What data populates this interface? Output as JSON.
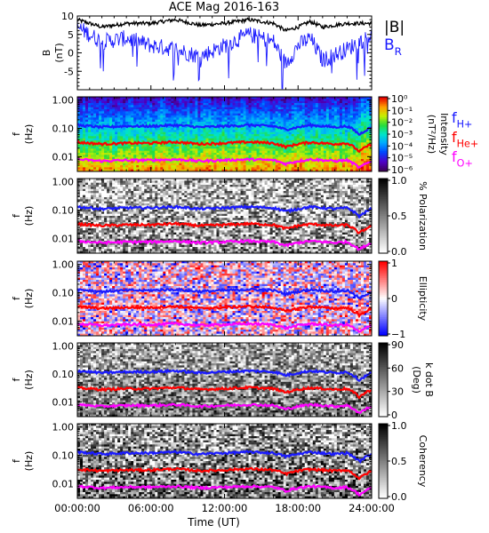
{
  "title": "ACE Mag 2016-163",
  "colors": {
    "B_total": "#000000",
    "B_R": "#1a1aff",
    "f_H": "#1a1aff",
    "f_He": "#ff0000",
    "f_O": "#ff00ff"
  },
  "chart_data": [
    {
      "type": "line",
      "panel": "magnetic-field",
      "ylabel": [
        "B",
        "(nT)"
      ],
      "ylim": [
        -10,
        10
      ],
      "yticks": [
        "10",
        "5",
        "0",
        "-5"
      ],
      "x": [
        0,
        2,
        4,
        6,
        8,
        10,
        12,
        14,
        16,
        17,
        18,
        19,
        20,
        22,
        24
      ],
      "series": [
        {
          "name": "|B|",
          "values": [
            9,
            7,
            8,
            8,
            9,
            7.5,
            8,
            9,
            8,
            6,
            7,
            8.5,
            7,
            8,
            8
          ]
        },
        {
          "name": "B_R",
          "values": [
            7,
            3,
            4,
            2,
            1,
            -1,
            2,
            5,
            3,
            -3,
            2,
            4,
            -2,
            1,
            5
          ]
        }
      ],
      "legend": [
        {
          "text": "|B|",
          "color_key": "B_total"
        },
        {
          "base": "B",
          "sub": "R",
          "color_key": "B_R"
        }
      ]
    },
    {
      "type": "heatmap",
      "panel": "intensity",
      "ylabel": [
        "f",
        "(Hz)"
      ],
      "yscale": "log",
      "ylim": [
        0.003,
        1.3
      ],
      "yticks": [
        "1.00",
        "0.10",
        "0.01"
      ],
      "colorbar": {
        "label": [
          "Intensity",
          "(nT²/Hz)"
        ],
        "scale": "log",
        "ticks": [
          "10⁰",
          "10⁻¹",
          "10⁻²",
          "10⁻³",
          "10⁻⁴",
          "10⁻⁵",
          "10⁻⁶"
        ],
        "colormap": "rainbow"
      },
      "legend": [
        {
          "base": "f",
          "sub": "H+",
          "color_key": "f_H"
        },
        {
          "base": "f",
          "sub": "He+",
          "color_key": "f_He"
        },
        {
          "base": "f",
          "sub": "O+",
          "color_key": "f_O"
        }
      ]
    },
    {
      "type": "heatmap",
      "panel": "polarization",
      "ylabel": [
        "f",
        "(Hz)"
      ],
      "yscale": "log",
      "yticks": [
        "1.00",
        "0.10",
        "0.01"
      ],
      "colorbar": {
        "label": [
          "% Polarization"
        ],
        "ticks": [
          "1.0",
          "0.5",
          "0.0"
        ],
        "colormap": "grayscale"
      }
    },
    {
      "type": "heatmap",
      "panel": "ellipticity",
      "ylabel": [
        "f",
        "(Hz)"
      ],
      "yscale": "log",
      "yticks": [
        "1.00",
        "0.10",
        "0.01"
      ],
      "colorbar": {
        "label": [
          "Ellipticity"
        ],
        "ticks": [
          "1",
          "0",
          "−1"
        ],
        "colormap": "red-white-blue"
      }
    },
    {
      "type": "heatmap",
      "panel": "wave-normal-angle",
      "ylabel": [
        "f",
        "(Hz)"
      ],
      "yscale": "log",
      "yticks": [
        "1.00",
        "0.10",
        "0.01"
      ],
      "colorbar": {
        "label": [
          "k dot B",
          "(Deg)"
        ],
        "ticks": [
          "90",
          "60",
          "30",
          "0"
        ],
        "colormap": "grayscale"
      }
    },
    {
      "type": "heatmap",
      "panel": "coherency",
      "ylabel": [
        "f",
        "(Hz)"
      ],
      "yscale": "log",
      "yticks": [
        "1.00",
        "0.10",
        "0.01"
      ],
      "colorbar": {
        "label": [
          "Coherency"
        ],
        "ticks": [
          "1.0",
          "0.5",
          "0.0"
        ],
        "colormap": "grayscale"
      }
    }
  ],
  "gyrofrequencies": {
    "x": [
      0,
      2,
      4,
      6,
      8,
      10,
      12,
      14,
      16,
      17,
      18,
      19,
      20,
      21,
      22,
      23,
      24
    ],
    "f_H": [
      0.13,
      0.11,
      0.12,
      0.12,
      0.13,
      0.11,
      0.12,
      0.13,
      0.12,
      0.09,
      0.11,
      0.13,
      0.12,
      0.11,
      0.12,
      0.06,
      0.11
    ],
    "f_He": [
      0.032,
      0.028,
      0.03,
      0.03,
      0.033,
      0.028,
      0.03,
      0.033,
      0.03,
      0.022,
      0.028,
      0.032,
      0.03,
      0.028,
      0.03,
      0.015,
      0.028
    ],
    "f_O": [
      0.008,
      0.007,
      0.0075,
      0.0075,
      0.008,
      0.007,
      0.0075,
      0.008,
      0.0075,
      0.0055,
      0.007,
      0.008,
      0.0075,
      0.007,
      0.0075,
      0.004,
      0.007
    ]
  },
  "xaxis": {
    "label": "Time (UT)",
    "ticks": [
      "00:00:00",
      "06:00:00",
      "12:00:00",
      "18:00:00",
      "24:00:00"
    ],
    "range_hours": [
      0,
      24
    ]
  }
}
